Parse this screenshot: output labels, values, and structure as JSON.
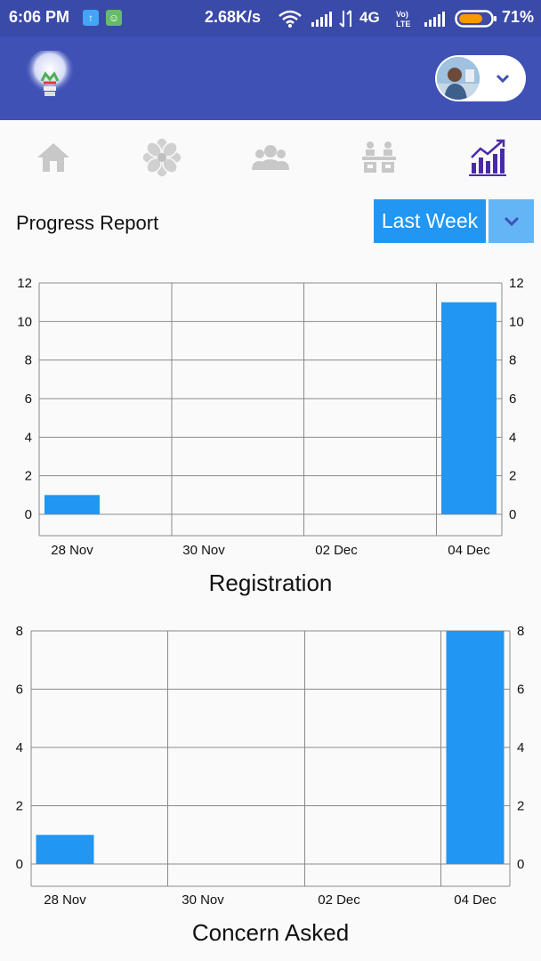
{
  "status_bar": {
    "time": "6:06 PM",
    "speed": "2.68K/s",
    "network": "4G",
    "volte": "Vo) LTE",
    "battery": "71%",
    "icons": [
      "upload-notification-icon",
      "android-notification-icon",
      "wifi-icon",
      "signal-icon",
      "signal-icon",
      "battery-icon"
    ]
  },
  "app_bar": {
    "logo": "lightbulb-logo-icon",
    "profile_chevron": "chevron-down-icon"
  },
  "tabs": [
    {
      "name": "home",
      "icon": "home-icon",
      "active": false
    },
    {
      "name": "flower",
      "icon": "flower-icon",
      "active": false
    },
    {
      "name": "group",
      "icon": "group-icon",
      "active": false
    },
    {
      "name": "meeting",
      "icon": "meeting-icon",
      "active": false
    },
    {
      "name": "progress",
      "icon": "bar-chart-icon",
      "active": true
    }
  ],
  "report": {
    "title": "Progress Report",
    "range_label": "Last Week"
  },
  "colors": {
    "primary": "#3f51b5",
    "status_bar": "#3a4aa8",
    "accent": "#2196f3",
    "accent_light": "#64b5f6",
    "active_tab": "#4a2aa8",
    "inactive_tab": "#c8c8c8"
  },
  "chart_data": [
    {
      "type": "bar",
      "title": "Registration",
      "categories": [
        "28 Nov",
        "30 Nov",
        "02 Dec",
        "04 Dec"
      ],
      "values": [
        1,
        0,
        0,
        11
      ],
      "ylim": [
        0,
        12
      ],
      "yticks": [
        "0",
        "2",
        "4",
        "6",
        "8",
        "10",
        "12"
      ],
      "grid": true,
      "color": "#2196f3"
    },
    {
      "type": "bar",
      "title": "Concern Asked",
      "categories": [
        "28 Nov",
        "30 Nov",
        "02 Dec",
        "04 Dec"
      ],
      "values": [
        1,
        0,
        0,
        8
      ],
      "ylim": [
        0,
        8
      ],
      "yticks": [
        "0",
        "2",
        "4",
        "6",
        "8"
      ],
      "grid": true,
      "color": "#2196f3"
    }
  ]
}
